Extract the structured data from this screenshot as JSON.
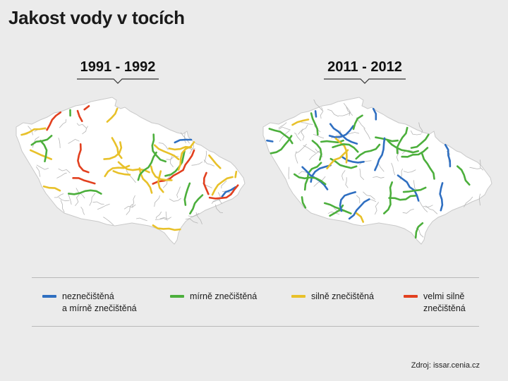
{
  "title": "Jakost vody v tocích",
  "maps": [
    {
      "period": "1991 - 1992",
      "mix": [
        0.05,
        0.3,
        0.35,
        0.3
      ]
    },
    {
      "period": "2011 - 2012",
      "mix": [
        0.28,
        0.52,
        0.2,
        0.0
      ]
    }
  ],
  "legend": [
    {
      "line1": "neznečištěná",
      "line2": "a mírně znečištěná",
      "color": "#2f6fc1"
    },
    {
      "line1": "mírně znečištěná",
      "line2": "",
      "color": "#4caf3c"
    },
    {
      "line1": "silně znečištěná",
      "line2": "",
      "color": "#e8c12a"
    },
    {
      "line1": "velmi silně",
      "line2": "znečištěná",
      "color": "#e2401f"
    }
  ],
  "source": "Zdroj: issar.cenia.cz"
}
